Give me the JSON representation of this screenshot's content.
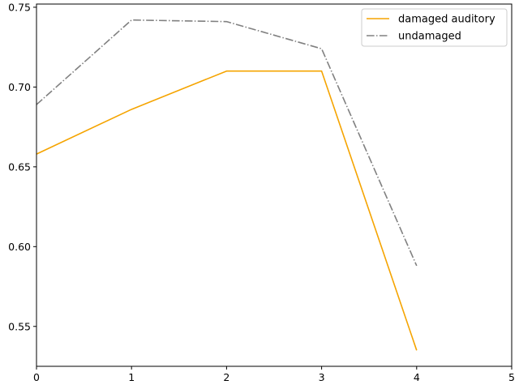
{
  "chart_data": {
    "type": "line",
    "title": "",
    "xlabel": "",
    "ylabel": "",
    "xlim": [
      0,
      5
    ],
    "ylim": [
      0.525,
      0.752
    ],
    "x_ticks": [
      0,
      1,
      2,
      3,
      4,
      5
    ],
    "x_tick_labels": [
      "0",
      "1",
      "2",
      "3",
      "4",
      "5"
    ],
    "y_ticks": [
      0.55,
      0.6,
      0.65,
      0.7,
      0.75
    ],
    "y_tick_labels": [
      "0.55",
      "0.60",
      "0.65",
      "0.70",
      "0.75"
    ],
    "grid": false,
    "legend_position": "top-right",
    "series": [
      {
        "name": "damaged auditory",
        "x": [
          0,
          1,
          2,
          3,
          4
        ],
        "values": [
          0.658,
          0.686,
          0.71,
          0.71,
          0.535
        ],
        "color": "#f5a400",
        "line_style": "solid"
      },
      {
        "name": "undamaged",
        "x": [
          0,
          1,
          2,
          3,
          4
        ],
        "values": [
          0.689,
          0.742,
          0.741,
          0.724,
          0.588
        ],
        "color": "#808080",
        "line_style": "dashdot"
      }
    ]
  }
}
